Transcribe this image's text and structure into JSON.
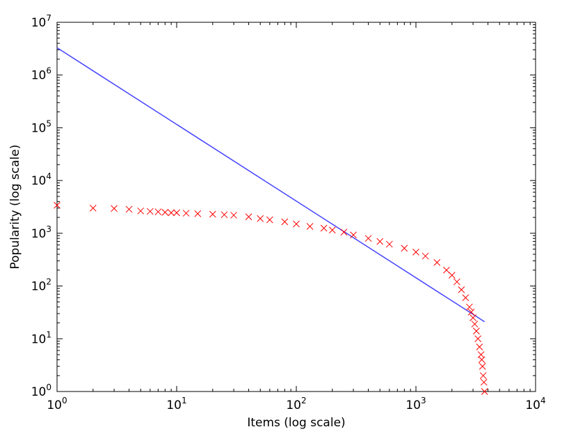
{
  "chart_data": {
    "type": "scatter",
    "title": "",
    "xlabel": "Items (log scale)",
    "ylabel": "Popularity (log scale)",
    "xscale": "log",
    "yscale": "log",
    "xlim": [
      1,
      10000
    ],
    "ylim": [
      1,
      10000000
    ],
    "grid": false,
    "x_ticks": [
      {
        "base": "10",
        "exp": "0"
      },
      {
        "base": "10",
        "exp": "1"
      },
      {
        "base": "10",
        "exp": "2"
      },
      {
        "base": "10",
        "exp": "3"
      },
      {
        "base": "10",
        "exp": "4"
      }
    ],
    "y_ticks": [
      {
        "base": "10",
        "exp": "0"
      },
      {
        "base": "10",
        "exp": "1"
      },
      {
        "base": "10",
        "exp": "2"
      },
      {
        "base": "10",
        "exp": "3"
      },
      {
        "base": "10",
        "exp": "4"
      },
      {
        "base": "10",
        "exp": "5"
      },
      {
        "base": "10",
        "exp": "6"
      },
      {
        "base": "10",
        "exp": "7"
      }
    ],
    "series": [
      {
        "marker": "x",
        "color": "#ff0000",
        "x": [
          1,
          2,
          3,
          4,
          5,
          6,
          7,
          8,
          9,
          10,
          12,
          15,
          20,
          25,
          30,
          40,
          50,
          60,
          80,
          100,
          130,
          170,
          200,
          250,
          300,
          400,
          500,
          600,
          800,
          1000,
          1200,
          1500,
          1800,
          2000,
          2200,
          2400,
          2600,
          2800,
          2900,
          3000,
          3100,
          3200,
          3300,
          3400,
          3500,
          3550,
          3600,
          3650,
          3700,
          3750
        ],
        "y": [
          3400,
          3000,
          2950,
          2850,
          2650,
          2600,
          2550,
          2500,
          2450,
          2450,
          2400,
          2350,
          2300,
          2250,
          2200,
          2050,
          1900,
          1800,
          1650,
          1500,
          1350,
          1250,
          1150,
          1050,
          930,
          800,
          700,
          620,
          520,
          440,
          370,
          280,
          200,
          160,
          120,
          85,
          60,
          40,
          32,
          25,
          19,
          14,
          10,
          7,
          5,
          4,
          3,
          2,
          1.5,
          1
        ]
      },
      {
        "marker": "line",
        "color": "#4444ff",
        "x": [
          1,
          3750
        ],
        "y": [
          3300000,
          21
        ]
      }
    ]
  }
}
